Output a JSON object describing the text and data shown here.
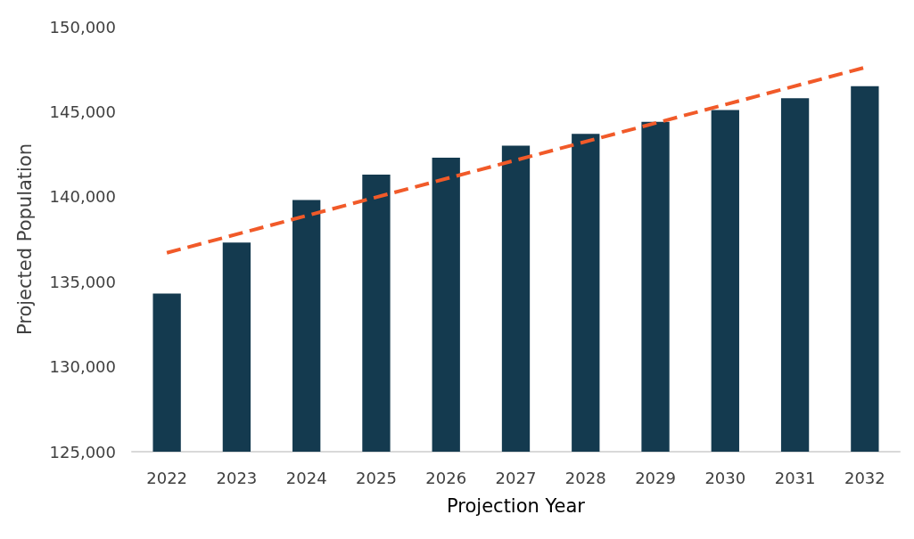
{
  "chart_data": {
    "type": "bar",
    "xlabel": "Projection Year",
    "ylabel": "Projected Population",
    "categories": [
      "2022",
      "2023",
      "2024",
      "2025",
      "2026",
      "2027",
      "2028",
      "2029",
      "2030",
      "2031",
      "2032"
    ],
    "series": [
      {
        "color": "#143a4f",
        "values": [
          134300,
          137300,
          139800,
          141300,
          142300,
          143000,
          143700,
          144400,
          145100,
          145800,
          146500
        ]
      },
      {
        "type": "line",
        "color": "#f15a29",
        "line_style": "dashed",
        "marker": "none",
        "values": [
          136700,
          null,
          null,
          null,
          null,
          null,
          null,
          null,
          null,
          null,
          147600
        ]
      }
    ],
    "ylim": [
      125000,
      150000
    ],
    "yticks": [
      {
        "value": 125000,
        "label": "125,000"
      },
      {
        "value": 130000,
        "label": "130,000"
      },
      {
        "value": 135000,
        "label": "135,000"
      },
      {
        "value": 140000,
        "label": "140,000"
      },
      {
        "value": 145000,
        "label": "145,000"
      },
      {
        "value": 150000,
        "label": "150,000"
      }
    ],
    "grid": false
  }
}
